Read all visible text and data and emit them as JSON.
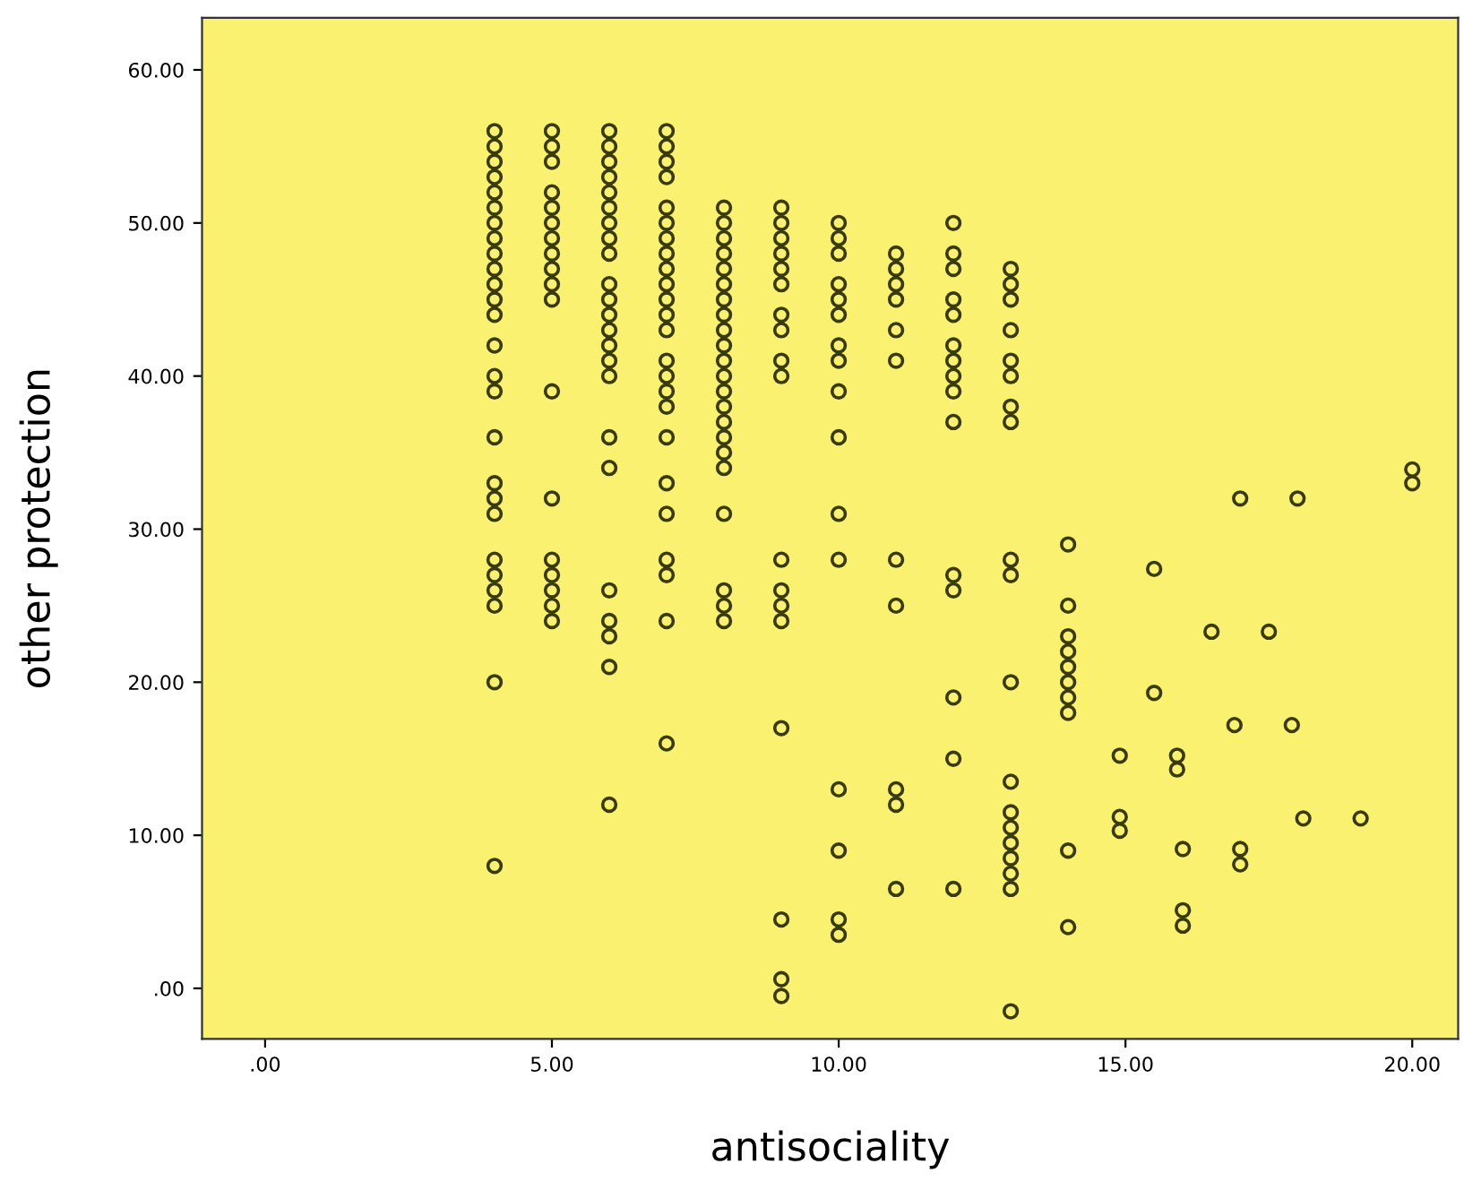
{
  "chart_data": {
    "type": "scatter",
    "xlabel": "antisociality",
    "ylabel": "other protection",
    "marker": "circle",
    "grid": false,
    "xlim": [
      -1.1,
      20.8
    ],
    "ylim": [
      -3.3,
      63.4
    ],
    "xticks": [
      {
        "value": 0,
        "label": ".00"
      },
      {
        "value": 5,
        "label": "5.00"
      },
      {
        "value": 10,
        "label": "10.00"
      },
      {
        "value": 15,
        "label": "15.00"
      },
      {
        "value": 20,
        "label": "20.00"
      }
    ],
    "yticks": [
      {
        "value": 0,
        "label": ".00"
      },
      {
        "value": 10,
        "label": "10.00"
      },
      {
        "value": 20,
        "label": "20.00"
      },
      {
        "value": 30,
        "label": "30.00"
      },
      {
        "value": 40,
        "label": "40.00"
      },
      {
        "value": 50,
        "label": "50.00"
      },
      {
        "value": 60,
        "label": "60.00"
      }
    ],
    "series": [
      {
        "color": "#3a3a10",
        "x": [
          4,
          4,
          4,
          4,
          4,
          4,
          4,
          4,
          4,
          4,
          4,
          4,
          4,
          4,
          4,
          4,
          4,
          4,
          4,
          4,
          4,
          4,
          4,
          4,
          4,
          4,
          5,
          5,
          5,
          5,
          5,
          5,
          5,
          5,
          5,
          5,
          5,
          5,
          5,
          5,
          5,
          5,
          5,
          5,
          6,
          6,
          6,
          6,
          6,
          6,
          6,
          6,
          6,
          6,
          6,
          6,
          6,
          6,
          6,
          6,
          6,
          6,
          6,
          6,
          6,
          6,
          6,
          7,
          7,
          7,
          7,
          7,
          7,
          7,
          7,
          7,
          7,
          7,
          7,
          7,
          7,
          7,
          7,
          7,
          7,
          7,
          7,
          7,
          7,
          7,
          7,
          8,
          8,
          8,
          8,
          8,
          8,
          8,
          8,
          8,
          8,
          8,
          8,
          8,
          8,
          8,
          8,
          8,
          8,
          8,
          8,
          8,
          8,
          9,
          9,
          9,
          9,
          9,
          9,
          9,
          9,
          9,
          9,
          9,
          9,
          9,
          9,
          9,
          9,
          9,
          9,
          10,
          10,
          10,
          10,
          10,
          10,
          10,
          10,
          10,
          10,
          10,
          10,
          10,
          10,
          10,
          10,
          11,
          11,
          11,
          11,
          11,
          11,
          11,
          11,
          11,
          11,
          11,
          12,
          12,
          12,
          12,
          12,
          12,
          12,
          12,
          12,
          12,
          12,
          12,
          12,
          12,
          12,
          13,
          13,
          13,
          13,
          13,
          13,
          13,
          13,
          13,
          13,
          13,
          13,
          13,
          13,
          13,
          13,
          13,
          13,
          13,
          14,
          14,
          14,
          14,
          14,
          14,
          14,
          14,
          14,
          14,
          15.5,
          16.5,
          17.5,
          17,
          18,
          20,
          20,
          15.5,
          16.9,
          17.9,
          14.9,
          15.9,
          15.9,
          14.9,
          14.9,
          18.1,
          19.1,
          16,
          17,
          17,
          16,
          16
        ],
        "values": [
          56,
          55,
          54,
          53,
          52,
          51,
          50,
          49,
          48,
          47,
          46,
          45,
          44,
          42,
          40,
          39,
          36,
          33,
          32,
          31,
          28,
          27,
          26,
          25,
          20,
          8,
          56,
          55,
          54,
          52,
          51,
          50,
          49,
          48,
          47,
          46,
          45,
          39,
          32,
          28,
          27,
          26,
          25,
          24,
          56,
          55,
          54,
          53,
          52,
          51,
          50,
          49,
          48,
          46,
          45,
          44,
          43,
          42,
          41,
          40,
          36,
          34,
          26,
          24,
          23,
          21,
          12,
          56,
          55,
          54,
          53,
          51,
          50,
          49,
          48,
          47,
          46,
          45,
          44,
          43,
          41,
          40,
          39,
          38,
          36,
          33,
          31,
          28,
          27,
          24,
          16,
          51,
          50,
          49,
          48,
          47,
          46,
          45,
          44,
          43,
          42,
          41,
          40,
          39,
          38,
          37,
          36,
          35,
          34,
          31,
          26,
          25,
          24,
          51,
          50,
          49,
          48,
          47,
          46,
          44,
          43,
          41,
          40,
          28,
          26,
          25,
          24,
          17,
          4.5,
          0.6,
          -0.5,
          50,
          49,
          48,
          46,
          45,
          44,
          42,
          41,
          39,
          36,
          31,
          28,
          13,
          9,
          4.5,
          3.5,
          48,
          47,
          46,
          45,
          43,
          41,
          28,
          25,
          13,
          12,
          6.5,
          50,
          48,
          47,
          45,
          44,
          42,
          41,
          40,
          39,
          37,
          27,
          26,
          19,
          15,
          6.5,
          47,
          46,
          45,
          43,
          41,
          40,
          38,
          37,
          28,
          27,
          20,
          13.5,
          11.5,
          10.5,
          9.5,
          8.5,
          7.5,
          6.5,
          -1.5,
          29,
          25,
          23,
          22,
          21,
          20,
          19,
          18,
          9,
          4,
          27.4,
          23.3,
          23.3,
          32,
          32,
          33.9,
          33,
          19.3,
          17.2,
          17.2,
          15.2,
          15.2,
          14.3,
          11.2,
          10.3,
          11.1,
          11.1,
          9.1,
          9.1,
          8.1,
          5.1,
          4.1
        ]
      }
    ]
  }
}
